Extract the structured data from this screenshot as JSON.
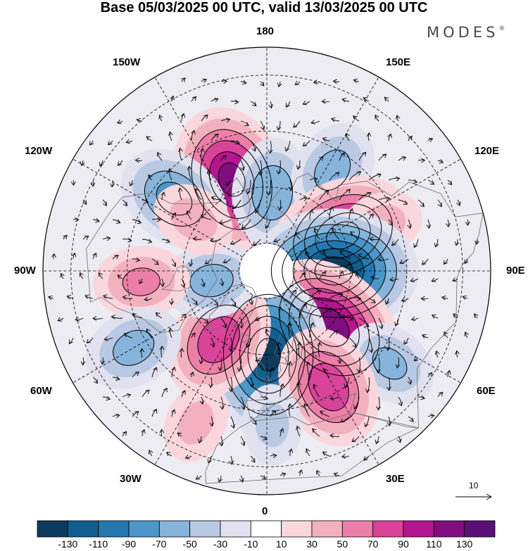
{
  "title": "Base 05/03/2025 00 UTC, valid 13/03/2025 00 UTC",
  "brand": {
    "name": "MODES",
    "mark": "®"
  },
  "longitude_labels": {
    "top": "180",
    "bottom": "0",
    "left": "90W",
    "right": "90E",
    "upper_left": "150W",
    "upper_right": "150E",
    "left_upper": "120W",
    "right_upper": "120E",
    "left_lower": "60W",
    "right_lower": "60E",
    "lower_left": "30W",
    "lower_right": "30E"
  },
  "vector_reference": {
    "value": "10"
  },
  "colorbar": {
    "ticks": [
      "-130",
      "-110",
      "-90",
      "-70",
      "-50",
      "-30",
      "-10",
      "10",
      "30",
      "50",
      "70",
      "90",
      "110",
      "130"
    ],
    "colors": [
      "#0d3a5e",
      "#125e8e",
      "#2478b0",
      "#4d97c8",
      "#86b4db",
      "#b9c8e3",
      "#e1e1ef",
      "#ffffff",
      "#f9d7dc",
      "#f3b1c0",
      "#ec7fa8",
      "#d9439a",
      "#b4168f",
      "#800e7e",
      "#5a1075"
    ]
  },
  "anomalies": [
    {
      "lat": 55,
      "lon": -159,
      "value": 120
    },
    {
      "lat": 48,
      "lon": -128,
      "value": -80
    },
    {
      "lat": 62,
      "lon": 176,
      "value": -70
    },
    {
      "lat": 47,
      "lon": 147,
      "value": -60
    },
    {
      "lat": 60,
      "lon": 115,
      "value": 120
    },
    {
      "lat": 46,
      "lon": 112,
      "value": 40
    },
    {
      "lat": 66,
      "lon": 90,
      "value": -145
    },
    {
      "lat": 60,
      "lon": 48,
      "value": 130
    },
    {
      "lat": 60,
      "lon": 1,
      "value": -140
    },
    {
      "lat": 60,
      "lon": -35,
      "value": 90
    },
    {
      "lat": 70,
      "lon": -80,
      "value": -60
    },
    {
      "lat": 45,
      "lon": -85,
      "value": 55
    },
    {
      "lat": 35,
      "lon": -60,
      "value": -60
    },
    {
      "lat": 35,
      "lon": 53,
      "value": -55
    },
    {
      "lat": 43,
      "lon": 28,
      "value": 90
    },
    {
      "lat": 30,
      "lon": -25,
      "value": 35
    },
    {
      "lat": 35,
      "lon": 2,
      "value": -35
    },
    {
      "lat": 58,
      "lon": -125,
      "value": 40
    }
  ]
}
